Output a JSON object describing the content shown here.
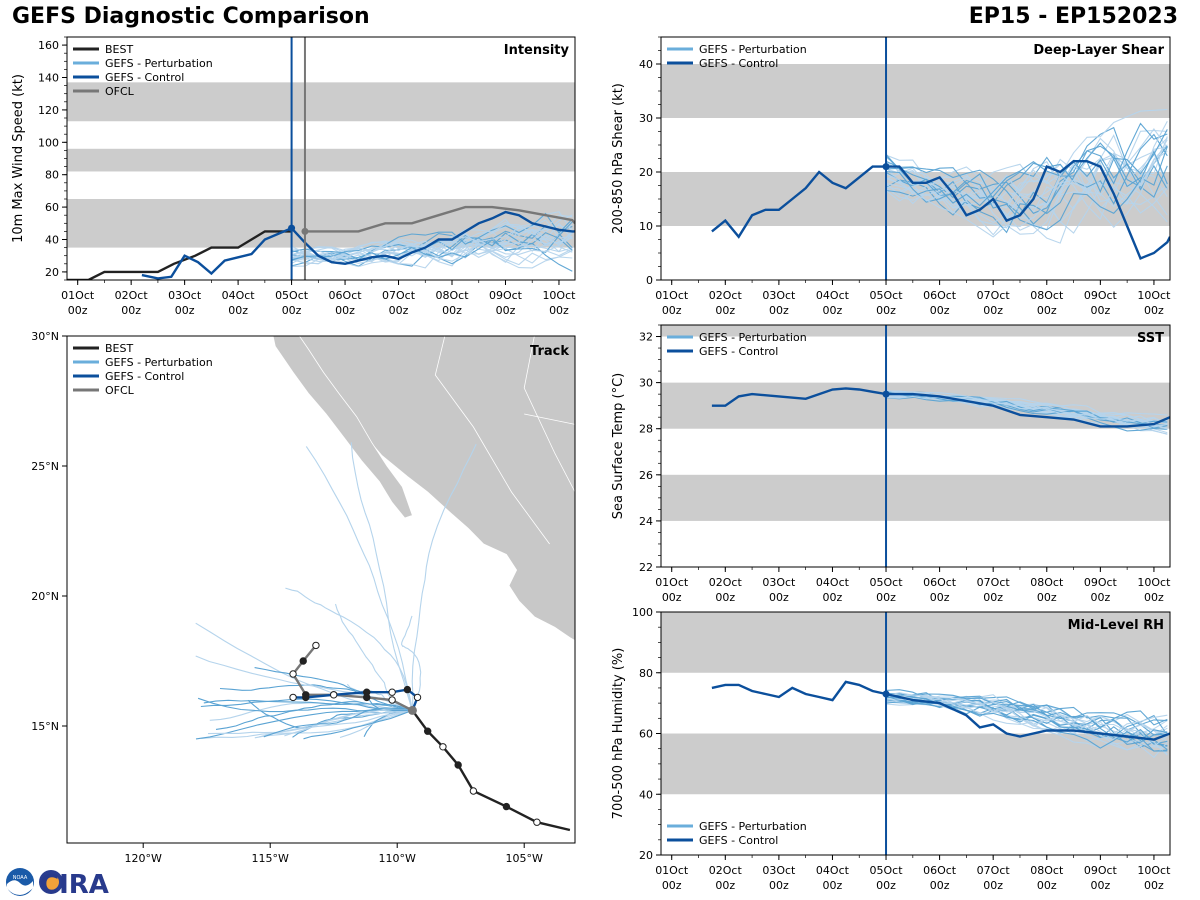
{
  "header": {
    "title": "GEFS Diagnostic Comparison",
    "storm_id": "EP15 - EP152023"
  },
  "logo": {
    "text": "CIRA",
    "agency": "NOAA"
  },
  "colors": {
    "best": "#222222",
    "control": "#0b4f9c",
    "perturbation": "#6aaedb",
    "ofcl": "#777777",
    "band": "#cccccc",
    "land": "#c8c8c8"
  },
  "time_axis": {
    "range_days": [
      -4.2,
      5.3
    ],
    "ticks": [
      {
        "day": -4,
        "date": "01Oct",
        "hour": "00z"
      },
      {
        "day": -3,
        "date": "02Oct",
        "hour": "00z"
      },
      {
        "day": -2,
        "date": "03Oct",
        "hour": "00z"
      },
      {
        "day": -1,
        "date": "04Oct",
        "hour": "00z"
      },
      {
        "day": 0,
        "date": "05Oct",
        "hour": "00z"
      },
      {
        "day": 1,
        "date": "06Oct",
        "hour": "00z"
      },
      {
        "day": 2,
        "date": "07Oct",
        "hour": "00z"
      },
      {
        "day": 3,
        "date": "08Oct",
        "hour": "00z"
      },
      {
        "day": 4,
        "date": "09Oct",
        "hour": "00z"
      },
      {
        "day": 5,
        "date": "10Oct",
        "hour": "00z"
      }
    ]
  },
  "chart_data": [
    {
      "id": "intensity",
      "type": "line",
      "title": "Intensity",
      "ylabel": "10m Max Wind Speed (kt)",
      "ylim": [
        15,
        165
      ],
      "yticks": [
        20,
        40,
        60,
        80,
        100,
        120,
        140,
        160
      ],
      "bands": [
        [
          35,
          65
        ],
        [
          82,
          96
        ],
        [
          113,
          137
        ]
      ],
      "vlines": [
        {
          "day": 0,
          "style": "control"
        },
        {
          "day": 0.25,
          "style": "ofcl"
        }
      ],
      "legend": [
        "BEST",
        "GEFS - Perturbation",
        "GEFS - Control",
        "OFCL"
      ],
      "series": [
        {
          "name": "BEST",
          "x": [
            -4.3,
            -3.8,
            -3.5,
            -2.8,
            -2.5,
            -2.2,
            -1.8,
            -1.5,
            -1.0,
            -0.5,
            0.0
          ],
          "y": [
            15,
            15,
            20,
            20,
            20,
            25,
            30,
            35,
            35,
            45,
            45
          ]
        },
        {
          "name": "GEFS - Control",
          "x": [
            -2.8,
            -2.5,
            -2.25,
            -2.0,
            -1.75,
            -1.5,
            -1.25,
            -1.0,
            -0.75,
            -0.5,
            0.0,
            0.25,
            0.5,
            0.75,
            1.0,
            1.25,
            1.5,
            1.75,
            2.0,
            2.25,
            2.5,
            2.75,
            3.0,
            3.25,
            3.5,
            3.75,
            4.0,
            4.25,
            4.5,
            4.75,
            5.0,
            5.25,
            5.3
          ],
          "y": [
            18,
            16,
            17,
            30,
            26,
            19,
            27,
            29,
            31,
            40,
            47,
            38,
            30,
            26,
            25,
            27,
            29,
            30,
            28,
            32,
            35,
            40,
            40,
            45,
            50,
            53,
            57,
            55,
            50,
            48,
            46,
            45,
            45
          ]
        },
        {
          "name": "OFCL",
          "x": [
            0.25,
            0.75,
            1.25,
            1.75,
            2.25,
            2.75,
            3.25,
            3.75,
            4.25,
            4.75,
            5.25,
            5.3
          ],
          "y": [
            45,
            45,
            45,
            50,
            50,
            55,
            60,
            60,
            58,
            55,
            52,
            50
          ]
        }
      ]
    },
    {
      "id": "shear",
      "type": "line",
      "title": "Deep-Layer Shear",
      "ylabel": "200-850 hPa Shear (kt)",
      "ylim": [
        0,
        45
      ],
      "yticks": [
        0,
        10,
        20,
        30,
        40
      ],
      "bands": [
        [
          10,
          20
        ],
        [
          30,
          40
        ]
      ],
      "vlines": [
        {
          "day": 0,
          "style": "control"
        }
      ],
      "legend": [
        "GEFS - Perturbation",
        "GEFS - Control"
      ],
      "series": [
        {
          "name": "GEFS - Control",
          "x": [
            -3.25,
            -3.0,
            -2.75,
            -2.5,
            -2.25,
            -2.0,
            -1.75,
            -1.5,
            -1.25,
            -1.0,
            -0.75,
            -0.5,
            -0.25,
            0.0,
            0.25,
            0.5,
            0.75,
            1.0,
            1.25,
            1.5,
            1.75,
            2.0,
            2.25,
            2.5,
            2.75,
            3.0,
            3.25,
            3.5,
            3.75,
            4.0,
            4.25,
            4.5,
            4.75,
            5.0,
            5.25,
            5.3
          ],
          "y": [
            9,
            11,
            8,
            12,
            13,
            13,
            15,
            17,
            20,
            18,
            17,
            19,
            21,
            21,
            21,
            18,
            18,
            19,
            16,
            12,
            13,
            15,
            11,
            12,
            15,
            21,
            20,
            22,
            22,
            21,
            16,
            10,
            4,
            5,
            7,
            8
          ]
        }
      ]
    },
    {
      "id": "track",
      "type": "map",
      "title": "Track",
      "lon_range": [
        -123,
        -103
      ],
      "lat_range": [
        10.5,
        30
      ],
      "xticks": [
        "120°W",
        "115°W",
        "110°W",
        "105°W"
      ],
      "xtick_lons": [
        -120,
        -115,
        -110,
        -105
      ],
      "yticks": [
        "15°N",
        "20°N",
        "25°N",
        "30°N"
      ],
      "ytick_lats": [
        15,
        20,
        25,
        30
      ],
      "legend": [
        "BEST",
        "GEFS - Perturbation",
        "GEFS - Control",
        "OFCL"
      ],
      "best_track": [
        [
          -103.2,
          11.0
        ],
        [
          -104.5,
          11.3
        ],
        [
          -105.7,
          11.9
        ],
        [
          -107.0,
          12.5
        ],
        [
          -107.6,
          13.5
        ],
        [
          -108.2,
          14.2
        ],
        [
          -108.8,
          14.8
        ],
        [
          -109.4,
          15.6
        ]
      ],
      "control_track": [
        [
          -109.4,
          15.6
        ],
        [
          -109.2,
          16.1
        ],
        [
          -109.6,
          16.4
        ],
        [
          -110.2,
          16.3
        ],
        [
          -111.2,
          16.3
        ],
        [
          -112.5,
          16.2
        ],
        [
          -113.6,
          16.1
        ],
        [
          -114.1,
          16.1
        ]
      ],
      "ofcl_track": [
        [
          -109.4,
          15.6
        ],
        [
          -110.2,
          16.0
        ],
        [
          -111.2,
          16.1
        ],
        [
          -112.5,
          16.2
        ],
        [
          -113.6,
          16.2
        ],
        [
          -114.1,
          17.0
        ],
        [
          -113.7,
          17.5
        ],
        [
          -113.2,
          18.1
        ]
      ]
    },
    {
      "id": "sst",
      "type": "line",
      "title": "SST",
      "ylabel": "Sea Surface Temp (°C)",
      "ylim": [
        22,
        32.5
      ],
      "yticks": [
        22,
        24,
        26,
        28,
        30,
        32
      ],
      "bands": [
        [
          24,
          26
        ],
        [
          28,
          30
        ],
        [
          32,
          34
        ]
      ],
      "vlines": [
        {
          "day": 0,
          "style": "control"
        }
      ],
      "legend": [
        "GEFS - Perturbation",
        "GEFS - Control"
      ],
      "series": [
        {
          "name": "GEFS - Control",
          "x": [
            -3.25,
            -3.0,
            -2.75,
            -2.5,
            -2.0,
            -1.5,
            -1.0,
            -0.75,
            -0.5,
            -0.25,
            0.0,
            0.5,
            1.0,
            1.5,
            2.0,
            2.5,
            3.0,
            3.5,
            4.0,
            4.5,
            5.0,
            5.3
          ],
          "y": [
            29.0,
            29.0,
            29.4,
            29.5,
            29.4,
            29.3,
            29.7,
            29.75,
            29.7,
            29.6,
            29.5,
            29.5,
            29.4,
            29.2,
            29.0,
            28.6,
            28.5,
            28.4,
            28.1,
            28.1,
            28.2,
            28.5
          ]
        }
      ]
    },
    {
      "id": "rh",
      "type": "line",
      "title": "Mid-Level RH",
      "ylabel": "700-500 hPa Humidity (%)",
      "ylim": [
        20,
        100
      ],
      "yticks": [
        20,
        40,
        60,
        80,
        100
      ],
      "bands": [
        [
          40,
          60
        ],
        [
          80,
          100
        ]
      ],
      "vlines": [
        {
          "day": 0,
          "style": "control"
        }
      ],
      "legend": [
        "GEFS - Perturbation",
        "GEFS - Control"
      ],
      "series": [
        {
          "name": "GEFS - Control",
          "x": [
            -3.25,
            -3.0,
            -2.75,
            -2.5,
            -2.25,
            -2.0,
            -1.75,
            -1.5,
            -1.25,
            -1.0,
            -0.75,
            -0.5,
            -0.25,
            0.0,
            0.5,
            1.0,
            1.25,
            1.5,
            1.75,
            2.0,
            2.25,
            2.5,
            3.0,
            3.5,
            4.0,
            4.5,
            5.0,
            5.3
          ],
          "y": [
            75,
            76,
            76,
            74,
            73,
            72,
            75,
            73,
            72,
            71,
            77,
            76,
            74,
            73,
            71,
            70,
            68,
            66,
            62,
            63,
            60,
            59,
            61,
            61,
            60,
            59,
            58,
            60
          ]
        }
      ]
    }
  ]
}
